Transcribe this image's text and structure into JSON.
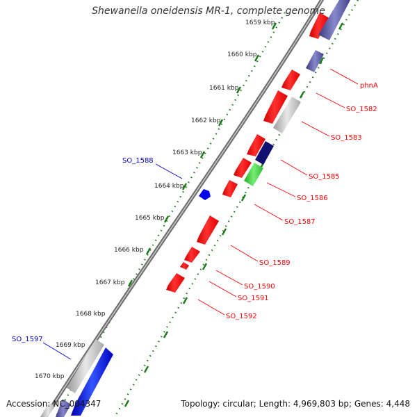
{
  "map": {
    "title": "Shewanella oneidensis MR-1, complete genome",
    "accession": "Accession: NC_004347",
    "summary": "Topology: circular; Length: 4,969,803 bp; Genes: 4,448"
  },
  "ticks": [
    "1659 kbp",
    "1660 kbp",
    "1661 kbp",
    "1662 kbp",
    "1663 kbp",
    "1664 kbp",
    "1665 kbp",
    "1666 kbp",
    "1667 kbp",
    "1668 kbp",
    "1669 kbp",
    "1670 kbp"
  ],
  "gene_labels": [
    {
      "text": "phnA",
      "strand": "reverse"
    },
    {
      "text": "SO_1582",
      "strand": "reverse"
    },
    {
      "text": "SO_1583",
      "strand": "reverse"
    },
    {
      "text": "SO_1585",
      "strand": "reverse"
    },
    {
      "text": "SO_1586",
      "strand": "reverse"
    },
    {
      "text": "SO_1587",
      "strand": "reverse"
    },
    {
      "text": "SO_1589",
      "strand": "reverse"
    },
    {
      "text": "SO_1590",
      "strand": "reverse"
    },
    {
      "text": "SO_1591",
      "strand": "reverse"
    },
    {
      "text": "SO_1592",
      "strand": "reverse"
    },
    {
      "text": "SO_1588",
      "strand": "forward"
    },
    {
      "text": "SO_1597",
      "strand": "forward"
    }
  ],
  "colors": {
    "reverse_gene": "#ff0000",
    "forward_gene": "#0000cc",
    "tick_marks": "#1a7a1a",
    "backbone": "#888888",
    "rna": "#b0b0b0",
    "navy_gene": "#6060a8",
    "green_gene": "#44cc44"
  }
}
